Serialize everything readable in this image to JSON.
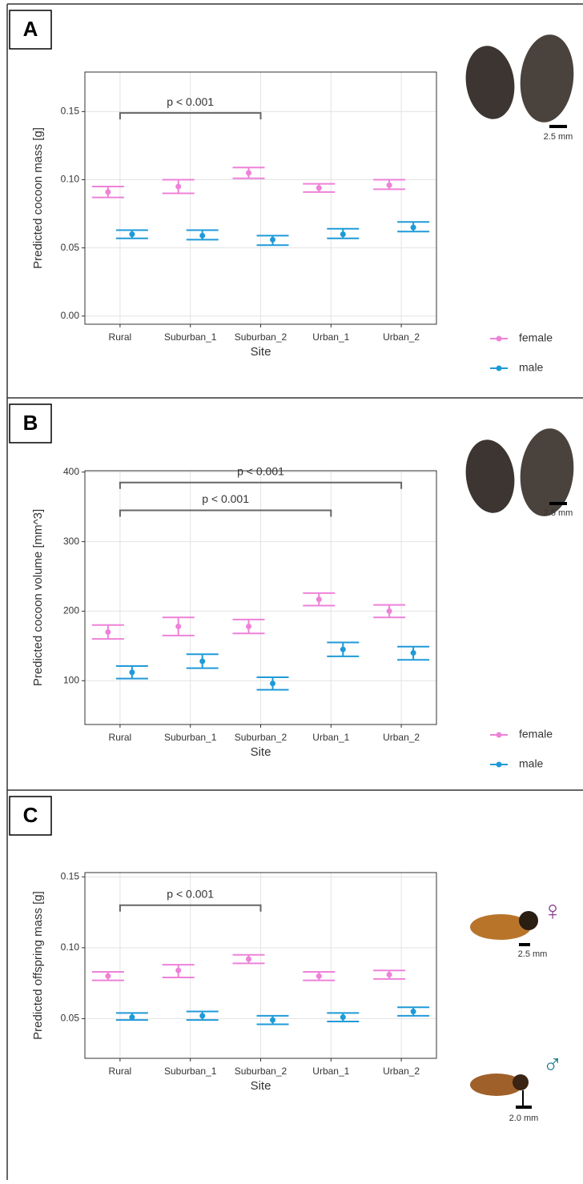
{
  "chart_data": [
    {
      "type": "pointrange",
      "panel_label": "A",
      "x_label": "Site",
      "y_label": "Predicted cocoon mass [g]",
      "categories": [
        "Rural",
        "Suburban_1",
        "Suburban_2",
        "Urban_1",
        "Urban_2"
      ],
      "series": [
        {
          "name": "female",
          "color": "#ee82d8",
          "values": [
            0.091,
            0.095,
            0.105,
            0.094,
            0.096
          ],
          "ci_low": [
            0.087,
            0.09,
            0.101,
            0.091,
            0.093
          ],
          "ci_high": [
            0.095,
            0.1,
            0.109,
            0.097,
            0.1
          ]
        },
        {
          "name": "male",
          "color": "#1f9ad8",
          "values": [
            0.06,
            0.059,
            0.056,
            0.06,
            0.065
          ],
          "ci_low": [
            0.057,
            0.056,
            0.052,
            0.057,
            0.062
          ],
          "ci_high": [
            0.063,
            0.063,
            0.059,
            0.064,
            0.069
          ]
        }
      ],
      "ylim": [
        -0.006,
        0.179
      ],
      "yticks": [
        {
          "value": 0,
          "label": "0.00"
        },
        0.05,
        {
          "value": 0.1,
          "label": "0.10"
        },
        0.15
      ],
      "grid": true,
      "legend": "right",
      "brackets": [
        {
          "from": "Rural",
          "to": "Suburban_2",
          "y": 0.149,
          "label": "p < 0.001"
        }
      ],
      "images": [
        {
          "scale": "2.5 mm"
        }
      ]
    },
    {
      "type": "pointrange",
      "panel_label": "B",
      "x_label": "Site",
      "y_label": "Predicted cocoon volume [mm^3]",
      "categories": [
        "Rural",
        "Suburban_1",
        "Suburban_2",
        "Urban_1",
        "Urban_2"
      ],
      "series": [
        {
          "name": "female",
          "color": "#ee82d8",
          "values": [
            170,
            178,
            178,
            217,
            200
          ],
          "ci_low": [
            160,
            165,
            168,
            208,
            191
          ],
          "ci_high": [
            180,
            191,
            188,
            226,
            209
          ]
        },
        {
          "name": "male",
          "color": "#1f9ad8",
          "values": [
            112,
            128,
            96,
            145,
            140
          ],
          "ci_low": [
            103,
            118,
            87,
            135,
            130
          ],
          "ci_high": [
            121,
            138,
            105,
            155,
            149
          ]
        }
      ],
      "ylim": [
        37,
        402
      ],
      "yticks": [
        100,
        200,
        300,
        400
      ],
      "grid": true,
      "legend": "right",
      "brackets": [
        {
          "from": "Rural",
          "to": "Urban_2",
          "y": 385,
          "label": "p < 0.001"
        },
        {
          "from": "Rural",
          "to": "Urban_1",
          "y": 345,
          "label": "p < 0.001"
        }
      ],
      "images": [
        {
          "scale": "2.5 mm"
        }
      ]
    },
    {
      "type": "pointrange",
      "panel_label": "C",
      "x_label": "Site",
      "y_label": "Predicted offspring mass [g]",
      "categories": [
        "Rural",
        "Suburban_1",
        "Suburban_2",
        "Urban_1",
        "Urban_2"
      ],
      "series": [
        {
          "name": "female",
          "color": "#ee82d8",
          "values": [
            0.08,
            0.084,
            0.092,
            0.08,
            0.081
          ],
          "ci_low": [
            0.077,
            0.079,
            0.089,
            0.077,
            0.078
          ],
          "ci_high": [
            0.083,
            0.088,
            0.095,
            0.083,
            0.084
          ]
        },
        {
          "name": "male",
          "color": "#1f9ad8",
          "values": [
            0.051,
            0.052,
            0.049,
            0.051,
            0.055
          ],
          "ci_low": [
            0.049,
            0.049,
            0.046,
            0.048,
            0.052
          ],
          "ci_high": [
            0.054,
            0.055,
            0.052,
            0.054,
            0.058
          ]
        }
      ],
      "ylim": [
        0.022,
        0.153
      ],
      "yticks": [
        0.05,
        {
          "value": 0.1,
          "label": "0.10"
        },
        0.15
      ],
      "grid": true,
      "brackets": [
        {
          "from": "Rural",
          "to": "Suburban_2",
          "y": 0.13,
          "label": "p < 0.001"
        }
      ],
      "images": [
        {
          "symbol": "♀",
          "scale": "2.5 mm"
        },
        {
          "symbol": "♂",
          "scale": "2.0 mm"
        }
      ]
    }
  ]
}
